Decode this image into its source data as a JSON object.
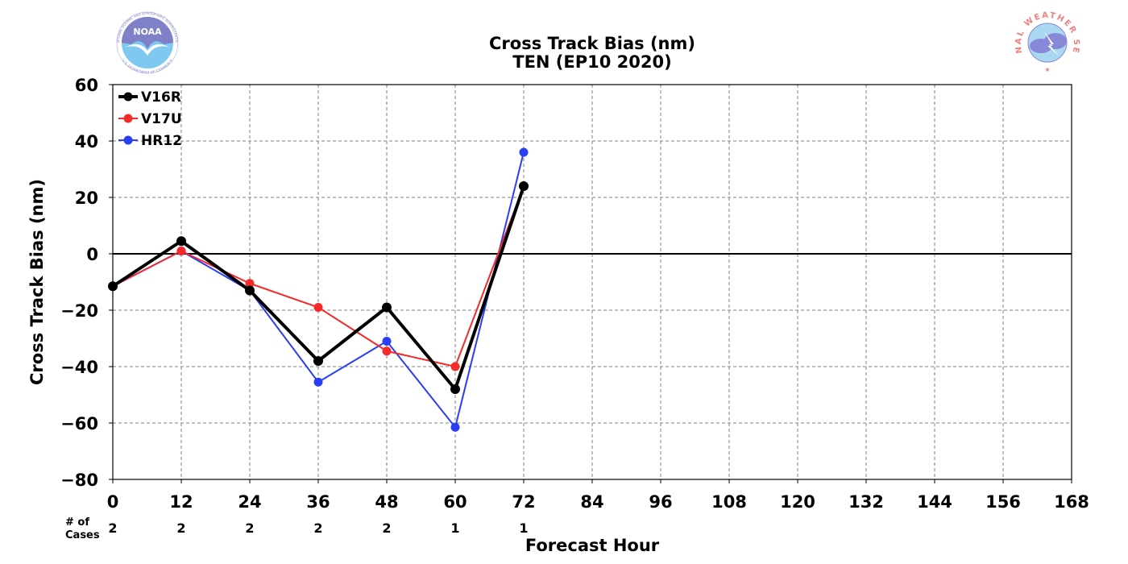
{
  "logos": {
    "left": "NOAA",
    "right": "NATIONAL WEATHER SERVICE",
    "left_ring": "NATIONAL OCEANIC AND ATMOSPHERIC ADMINISTRATION",
    "left_ring_bottom": "U.S. DEPARTMENT OF COMMERCE",
    "left_colors": {
      "bird": "#8080c8",
      "sea": "#7fc8f0"
    },
    "right_colors": {
      "text": "#f08080",
      "cloud": "#8888d8",
      "sky": "#aad8f0"
    }
  },
  "chart_data": {
    "type": "line",
    "title": "Cross Track Bias (nm)",
    "subtitle": "TEN (EP10 2020)",
    "xlabel": "Forecast Hour",
    "ylabel": "Cross Track Bias (nm)",
    "xlim": [
      0,
      168
    ],
    "ylim": [
      -80,
      60
    ],
    "x_ticks": [
      0,
      12,
      24,
      36,
      48,
      60,
      72,
      84,
      96,
      108,
      120,
      132,
      144,
      156,
      168
    ],
    "y_ticks": [
      60,
      40,
      20,
      0,
      -20,
      -40,
      -60,
      -80
    ],
    "y_tick_labels": [
      "60",
      "40",
      "20",
      "0",
      "−20",
      "−40",
      "−60",
      "−80"
    ],
    "grid": true,
    "zero_line": true,
    "legend_position": "top-left",
    "cases_label": [
      "# of",
      "Cases"
    ],
    "cases": [
      {
        "x": 0,
        "n": "2"
      },
      {
        "x": 12,
        "n": "2"
      },
      {
        "x": 24,
        "n": "2"
      },
      {
        "x": 36,
        "n": "2"
      },
      {
        "x": 48,
        "n": "2"
      },
      {
        "x": 60,
        "n": "1"
      },
      {
        "x": 72,
        "n": "1"
      }
    ],
    "series": [
      {
        "name": "HR12",
        "color": "#2a3ef5",
        "width": "thin",
        "x": [
          0,
          12,
          24,
          36,
          48,
          60,
          72
        ],
        "y": [
          -11.5,
          1,
          -13,
          -45.5,
          -31,
          -61.5,
          36
        ]
      },
      {
        "name": "V17U",
        "color": "#f52a2a",
        "width": "thin",
        "x": [
          0,
          12,
          24,
          36,
          48,
          60,
          72
        ],
        "y": [
          -11.5,
          1,
          -10.5,
          -19,
          -34.5,
          -40,
          24
        ]
      },
      {
        "name": "V16R",
        "color": "#000000",
        "width": "thick",
        "x": [
          0,
          12,
          24,
          36,
          48,
          60,
          72
        ],
        "y": [
          -11.5,
          4.5,
          -13,
          -38,
          -19,
          -48,
          24
        ]
      }
    ],
    "legend_order": [
      "V16R",
      "V17U",
      "HR12"
    ]
  }
}
